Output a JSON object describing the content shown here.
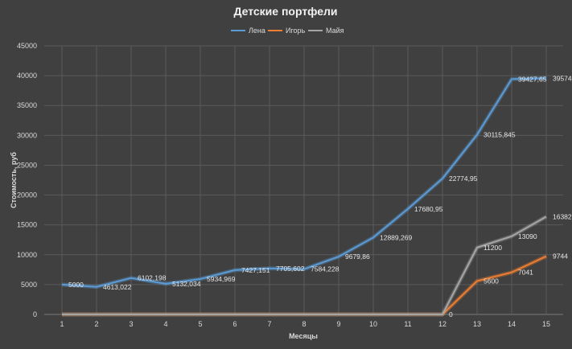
{
  "chart_data": {
    "type": "line",
    "title": "Детские портфели",
    "xlabel": "Месяцы",
    "ylabel": "Стоимость, руб",
    "ylim": [
      0,
      45000
    ],
    "ytick_step": 5000,
    "categories": [
      "1",
      "2",
      "3",
      "4",
      "5",
      "6",
      "7",
      "8",
      "9",
      "10",
      "11",
      "12",
      "13",
      "14",
      "15"
    ],
    "grid": true,
    "legend_position": "top-center",
    "series": [
      {
        "name": "Лена",
        "color": "#5b9bd5",
        "values": [
          5000,
          4613.022,
          6102.198,
          5132.034,
          5934.969,
          7427.151,
          7705.602,
          7584.228,
          9679.86,
          12889.269,
          17680.95,
          22774.95,
          30115.845,
          39427.65,
          39574
        ],
        "labels": [
          "5000",
          "4613,022",
          "6102,198",
          "5132,034",
          "5934,969",
          "7427,151",
          "7705,602",
          "7584,228",
          "9679,86",
          "12889,269",
          "17680,95",
          "22774,95",
          "30115,845",
          "39427,65",
          "39574"
        ]
      },
      {
        "name": "Игорь",
        "color": "#ed7d31",
        "values": [
          0,
          0,
          0,
          0,
          0,
          0,
          0,
          0,
          0,
          0,
          0,
          0,
          5600,
          7041,
          9744
        ],
        "labels": [
          "",
          "",
          "",
          "",
          "",
          "",
          "",
          "",
          "",
          "",
          "",
          "0",
          "5600",
          "7041",
          "9744"
        ]
      },
      {
        "name": "Майя",
        "color": "#a5a5a5",
        "values": [
          0,
          0,
          0,
          0,
          0,
          0,
          0,
          0,
          0,
          0,
          0,
          0,
          11200,
          13090,
          16382
        ],
        "labels": [
          "",
          "",
          "",
          "",
          "",
          "",
          "",
          "",
          "",
          "",
          "",
          "",
          "11200",
          "13090",
          "16382"
        ]
      }
    ]
  }
}
